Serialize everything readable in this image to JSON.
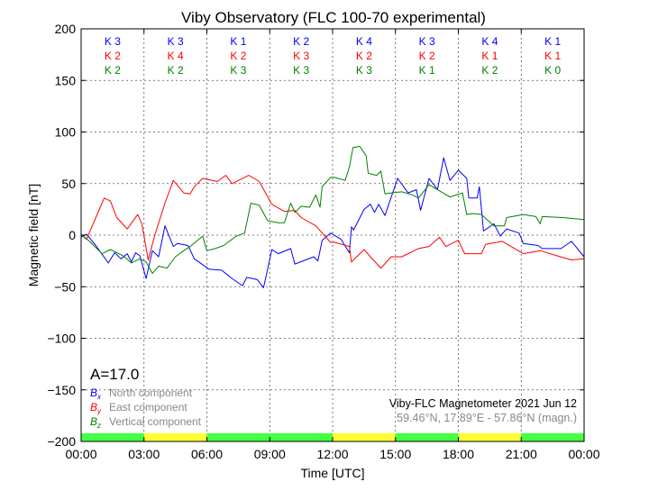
{
  "chart_data": {
    "type": "line",
    "title": "Viby Observatory (FLC 100-70 experimental)",
    "xlabel": "Time [UTC]",
    "ylabel": "Magnetic field [nT]",
    "xlim": [
      0,
      24
    ],
    "ylim": [
      -200,
      200
    ],
    "grid": true,
    "xticks": [
      "00:00",
      "03:00",
      "06:00",
      "09:00",
      "12:00",
      "15:00",
      "18:00",
      "21:00",
      "00:00"
    ],
    "yticks": [
      200,
      150,
      100,
      50,
      0,
      -50,
      -100,
      -150,
      -200
    ],
    "ytick_labels": [
      "200",
      "150",
      "100",
      "50",
      "0",
      "−50",
      "−100",
      "−150",
      "−200"
    ],
    "k_index": {
      "rows": [
        {
          "component": "Bx",
          "color": "#0000ff",
          "values": [
            "K 3",
            "K 3",
            "K 1",
            "K 2",
            "K 4",
            "K 3",
            "K 4",
            "K 1"
          ]
        },
        {
          "component": "By",
          "color": "#ff0000",
          "values": [
            "K 2",
            "K 4",
            "K 2",
            "K 3",
            "K 2",
            "K 2",
            "K 1",
            "K 1"
          ]
        },
        {
          "component": "Bz",
          "color": "#008000",
          "values": [
            "K 2",
            "K 2",
            "K 3",
            "K 3",
            "K 3",
            "K 1",
            "K 2",
            "K 0"
          ]
        }
      ]
    },
    "activity_bar": [
      {
        "from": 0,
        "to": 3,
        "color": "#44ff44"
      },
      {
        "from": 3,
        "to": 6,
        "color": "#ffff33"
      },
      {
        "from": 6,
        "to": 12,
        "color": "#44ff44"
      },
      {
        "from": 12,
        "to": 15,
        "color": "#ffff33"
      },
      {
        "from": 15,
        "to": 18,
        "color": "#44ff44"
      },
      {
        "from": 18,
        "to": 21,
        "color": "#ffff33"
      },
      {
        "from": 21,
        "to": 24,
        "color": "#44ff44"
      }
    ],
    "a_index": "A=17.0",
    "legend_placement": "bottom-left",
    "series": [
      {
        "name": "North component",
        "symbol": "B",
        "sub": "x",
        "color": "#0000ff",
        "x": [
          0,
          0.26,
          0.7,
          1.3,
          1.6,
          1.9,
          2.2,
          2.4,
          2.6,
          2.8,
          3.1,
          3.4,
          3.7,
          4.0,
          4.4,
          4.6,
          5.1,
          5.4,
          6.1,
          6.7,
          7.2,
          7.7,
          7.9,
          8.4,
          8.7,
          8.9,
          9.1,
          9.4,
          10.0,
          10.2,
          11.1,
          11.3,
          11.5,
          11.9,
          12.4,
          12.8,
          12.9,
          13.0,
          13.5,
          13.8,
          14.0,
          14.2,
          14.5,
          15.1,
          15.6,
          16.0,
          16.2,
          16.6,
          17.0,
          17.3,
          17.6,
          18.0,
          18.4,
          18.5,
          18.9,
          19.0,
          19.2,
          19.7,
          20.0,
          20.3,
          20.9,
          21.1,
          21.8,
          22.0,
          22.9,
          23.4,
          24
        ],
        "y": [
          -2,
          1,
          -10,
          -27,
          -17,
          -23,
          -18,
          -26,
          -17,
          -20,
          -42,
          -15,
          -21,
          9,
          -11,
          -8,
          -10,
          -23,
          -33,
          -34,
          -42,
          -49,
          -41,
          -43,
          -51,
          -33,
          -14,
          -18,
          -13,
          -28,
          -21,
          -25,
          -5,
          2,
          -4,
          -17,
          8,
          5,
          25,
          30,
          22,
          30,
          19,
          55,
          41,
          44,
          24,
          55,
          44,
          75,
          53,
          63,
          55,
          36,
          36,
          47,
          4,
          11,
          -1,
          6,
          2,
          -8,
          -10,
          -13,
          -13,
          -6,
          -21
        ]
      },
      {
        "name": "East component",
        "symbol": "B",
        "sub": "y",
        "color": "#ff0000",
        "x": [
          0,
          0.26,
          0.7,
          1.1,
          1.4,
          1.7,
          2.2,
          2.7,
          2.9,
          3.2,
          3.5,
          4.0,
          4.4,
          4.9,
          5.2,
          5.4,
          5.8,
          6.5,
          6.9,
          7.2,
          8.0,
          8.5,
          9.1,
          9.7,
          10.2,
          10.5,
          11.2,
          11.9,
          12.1,
          12.8,
          12.9,
          13.2,
          13.5,
          13.8,
          14.3,
          14.8,
          15.3,
          16.1,
          16.6,
          17.1,
          17.4,
          18.0,
          18.3,
          19.1,
          19.3,
          20.1,
          21.1,
          21.9,
          22.7,
          23.4,
          24
        ],
        "y": [
          1,
          -4,
          17,
          36,
          33,
          17,
          6,
          20,
          11,
          -24,
          -1,
          31,
          53,
          41,
          40,
          47,
          55,
          52,
          58,
          50,
          58,
          52,
          30,
          23,
          24,
          17,
          9,
          -7,
          -7,
          -11,
          -26,
          -20,
          -14,
          -21,
          -32,
          -21,
          -21,
          -13,
          -11,
          -2,
          -11,
          -5,
          -18,
          -18,
          -9,
          -6,
          -18,
          -15,
          -20,
          -24,
          -23
        ]
      },
      {
        "name": "Vertical component",
        "symbol": "B",
        "sub": "z",
        "color": "#008000",
        "x": [
          0,
          0.4,
          1.0,
          1.4,
          2.0,
          2.4,
          2.8,
          3.1,
          3.4,
          3.7,
          4.1,
          4.5,
          4.9,
          5.2,
          5.8,
          6.0,
          6.4,
          6.8,
          7.4,
          7.8,
          8.1,
          8.5,
          8.9,
          9.4,
          9.7,
          10.0,
          10.2,
          10.5,
          10.9,
          11.2,
          11.4,
          11.5,
          11.9,
          12.1,
          12.6,
          12.8,
          12.97,
          13.3,
          13.6,
          13.7,
          14.1,
          14.3,
          14.5,
          14.8,
          15.3,
          15.8,
          16.1,
          16.6,
          17.0,
          17.6,
          18.2,
          18.4,
          18.7,
          19.1,
          19.7,
          20.2,
          20.3,
          21.1,
          21.7,
          21.9,
          22.0,
          23.0,
          24
        ],
        "y": [
          1,
          -6,
          -18,
          -14,
          -20,
          -27,
          -23,
          -26,
          -37,
          -30,
          -32,
          -21,
          -15,
          -11,
          -1,
          -15,
          -13,
          -10,
          -1,
          2,
          31,
          29,
          14,
          12,
          12,
          31,
          22,
          28,
          27,
          39,
          27,
          47,
          56,
          56,
          53,
          66,
          85,
          86,
          77,
          60,
          58,
          62,
          40,
          41,
          42,
          39,
          36,
          49,
          44,
          37,
          41,
          20,
          21,
          20,
          9,
          9,
          17,
          20,
          18,
          11,
          18,
          17,
          15
        ]
      }
    ],
    "info_title": "Viby-FLC Magnetometer 2021 Jun 12",
    "info_location": "59.46°N, 17.89°E - 57.86°N (magn.)"
  }
}
